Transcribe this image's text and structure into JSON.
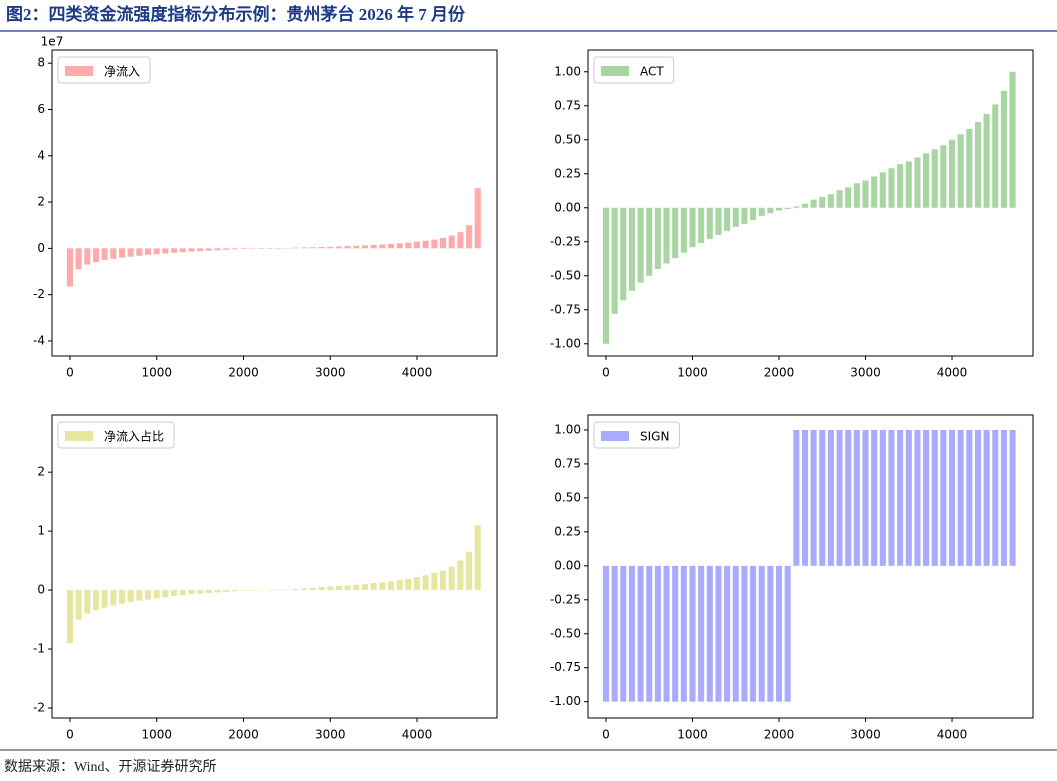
{
  "title": "图2：四类资金流强度指标分布示例：贵州茅台 2026 年 7 月份",
  "source": "数据来源：Wind、开源证券研究所",
  "chart_data": [
    {
      "type": "bar",
      "offset_text": "1e7",
      "legend": "upper left",
      "x": [
        0,
        100,
        200,
        300,
        400,
        500,
        600,
        700,
        800,
        900,
        1000,
        1100,
        1200,
        1300,
        1400,
        1500,
        1600,
        1700,
        1800,
        1900,
        2000,
        2100,
        2200,
        2300,
        2400,
        2500,
        2600,
        2700,
        2800,
        2900,
        3000,
        3100,
        3200,
        3300,
        3400,
        3500,
        3600,
        3700,
        3800,
        3900,
        4000,
        4100,
        4200,
        4300,
        4400,
        4500,
        4600,
        4700
      ],
      "series": [
        {
          "name": "净流入",
          "color": "#ffaaaa",
          "values": [
            -1.65,
            -0.9,
            -0.7,
            -0.6,
            -0.5,
            -0.45,
            -0.4,
            -0.36,
            -0.32,
            -0.28,
            -0.25,
            -0.22,
            -0.19,
            -0.16,
            -0.14,
            -0.12,
            -0.1,
            -0.08,
            -0.06,
            -0.04,
            -0.03,
            -0.01,
            0,
            0,
            0.01,
            0.02,
            0.03,
            0.04,
            0.05,
            0.06,
            0.07,
            0.08,
            0.1,
            0.11,
            0.13,
            0.15,
            0.17,
            0.19,
            0.22,
            0.25,
            0.29,
            0.33,
            0.38,
            0.45,
            0.55,
            0.7,
            1.0,
            2.6
          ]
        }
      ],
      "xlim": [
        -207,
        4922
      ],
      "xticks": [
        0,
        1000,
        2000,
        3000,
        4000
      ],
      "ylim": [
        -4.65,
        8.57
      ],
      "yticks": [
        -4,
        -2,
        0,
        2,
        4,
        6,
        8
      ]
    },
    {
      "type": "bar",
      "legend": "upper left",
      "x": [
        0,
        100,
        200,
        300,
        400,
        500,
        600,
        700,
        800,
        900,
        1000,
        1100,
        1200,
        1300,
        1400,
        1500,
        1600,
        1700,
        1800,
        1900,
        2000,
        2100,
        2200,
        2300,
        2400,
        2500,
        2600,
        2700,
        2800,
        2900,
        3000,
        3100,
        3200,
        3300,
        3400,
        3500,
        3600,
        3700,
        3800,
        3900,
        4000,
        4100,
        4200,
        4300,
        4400,
        4500,
        4600,
        4700
      ],
      "series": [
        {
          "name": "ACT",
          "color": "#a8d5a2",
          "values": [
            -1.0,
            -0.78,
            -0.68,
            -0.61,
            -0.55,
            -0.5,
            -0.45,
            -0.41,
            -0.37,
            -0.33,
            -0.29,
            -0.26,
            -0.23,
            -0.2,
            -0.17,
            -0.14,
            -0.12,
            -0.09,
            -0.06,
            -0.04,
            -0.02,
            -0.01,
            0.01,
            0.03,
            0.06,
            0.08,
            0.1,
            0.13,
            0.15,
            0.18,
            0.2,
            0.23,
            0.26,
            0.29,
            0.32,
            0.34,
            0.37,
            0.4,
            0.43,
            0.46,
            0.5,
            0.54,
            0.58,
            0.63,
            0.69,
            0.76,
            0.86,
            1.0
          ]
        }
      ],
      "xlim": [
        -208,
        4936
      ],
      "xticks": [
        0,
        1000,
        2000,
        3000,
        4000
      ],
      "ylim": [
        -1.09,
        1.16
      ],
      "yticks": [
        {
          "value": -1,
          "label": "-1.00"
        },
        -0.75,
        {
          "value": -0.5,
          "label": "-0.50"
        },
        -0.25,
        {
          "value": 0,
          "label": "0.00"
        },
        0.25,
        {
          "value": 0.5,
          "label": "0.50"
        },
        0.75,
        {
          "value": 1,
          "label": "1.00"
        }
      ]
    },
    {
      "type": "bar",
      "legend": "upper left",
      "x": [
        0,
        100,
        200,
        300,
        400,
        500,
        600,
        700,
        800,
        900,
        1000,
        1100,
        1200,
        1300,
        1400,
        1500,
        1600,
        1700,
        1800,
        1900,
        2000,
        2100,
        2200,
        2300,
        2400,
        2500,
        2600,
        2700,
        2800,
        2900,
        3000,
        3100,
        3200,
        3300,
        3400,
        3500,
        3600,
        3700,
        3800,
        3900,
        4000,
        4100,
        4200,
        4300,
        4400,
        4500,
        4600,
        4700
      ],
      "series": [
        {
          "name": "净流入占比",
          "color": "#e6e6a0",
          "values": [
            -0.9,
            -0.5,
            -0.4,
            -0.34,
            -0.3,
            -0.26,
            -0.23,
            -0.2,
            -0.18,
            -0.16,
            -0.14,
            -0.12,
            -0.1,
            -0.09,
            -0.07,
            -0.06,
            -0.05,
            -0.04,
            -0.03,
            -0.02,
            -0.01,
            -0.01,
            0,
            0,
            0.01,
            0.01,
            0.02,
            0.03,
            0.04,
            0.05,
            0.06,
            0.07,
            0.08,
            0.09,
            0.1,
            0.12,
            0.13,
            0.15,
            0.17,
            0.19,
            0.22,
            0.25,
            0.29,
            0.33,
            0.4,
            0.5,
            0.65,
            1.1
          ]
        }
      ],
      "xlim": [
        -207,
        4922
      ],
      "xticks": [
        0,
        1000,
        2000,
        3000,
        4000
      ],
      "ylim": [
        -2.17,
        2.97
      ],
      "yticks": [
        -2,
        -1,
        0,
        1,
        2
      ]
    },
    {
      "type": "bar",
      "legend": "upper left",
      "x": [
        0,
        100,
        200,
        300,
        400,
        500,
        600,
        700,
        800,
        900,
        1000,
        1100,
        1200,
        1300,
        1400,
        1500,
        1600,
        1700,
        1800,
        1900,
        2000,
        2100,
        2200,
        2300,
        2400,
        2500,
        2600,
        2700,
        2800,
        2900,
        3000,
        3100,
        3200,
        3300,
        3400,
        3500,
        3600,
        3700,
        3800,
        3900,
        4000,
        4100,
        4200,
        4300,
        4400,
        4500,
        4600,
        4700
      ],
      "series": [
        {
          "name": "SIGN",
          "color": "#aaaaff",
          "values": [
            -1,
            -1,
            -1,
            -1,
            -1,
            -1,
            -1,
            -1,
            -1,
            -1,
            -1,
            -1,
            -1,
            -1,
            -1,
            -1,
            -1,
            -1,
            -1,
            -1,
            -1,
            -1,
            1,
            1,
            1,
            1,
            1,
            1,
            1,
            1,
            1,
            1,
            1,
            1,
            1,
            1,
            1,
            1,
            1,
            1,
            1,
            1,
            1,
            1,
            1,
            1,
            1,
            1
          ]
        }
      ],
      "xlim": [
        -208,
        4936
      ],
      "xticks": [
        0,
        1000,
        2000,
        3000,
        4000
      ],
      "ylim": [
        -1.12,
        1.11
      ],
      "yticks": [
        {
          "value": -1,
          "label": "-1.00"
        },
        -0.75,
        {
          "value": -0.5,
          "label": "-0.50"
        },
        -0.25,
        {
          "value": 0,
          "label": "0.00"
        },
        0.25,
        {
          "value": 0.5,
          "label": "0.50"
        },
        0.75,
        {
          "value": 1,
          "label": "1.00"
        }
      ]
    }
  ]
}
